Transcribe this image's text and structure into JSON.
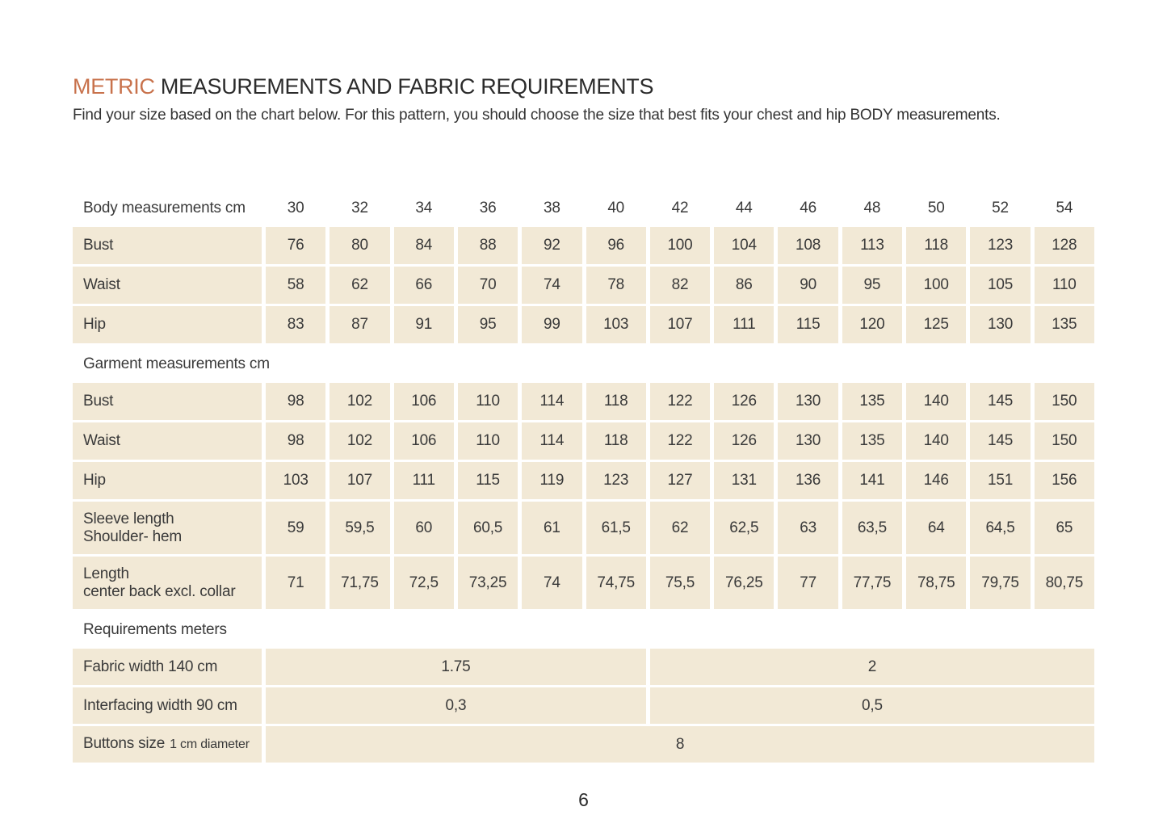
{
  "header": {
    "title_accent": "METRIC",
    "title_rest": "MEASUREMENTS AND FABRIC REQUIREMENTS",
    "intro": "Find your size based on the chart below. For this pattern, you should choose the size that best fits your chest and hip BODY measurements."
  },
  "colors": {
    "accent_orange": "#c8724c",
    "cell_beige": "#f2e9d6",
    "text_dark": "#3a3a3a"
  },
  "footer": {
    "page_number": "6"
  },
  "table": {
    "columns": 13,
    "sections": [
      {
        "type": "header_row",
        "label_lines": [
          "Body measurements cm"
        ],
        "values": [
          "30",
          "32",
          "34",
          "36",
          "38",
          "40",
          "42",
          "44",
          "46",
          "48",
          "50",
          "52",
          "54"
        ]
      },
      {
        "type": "data_row",
        "label_lines": [
          "Bust"
        ],
        "values": [
          "76",
          "80",
          "84",
          "88",
          "92",
          "96",
          "100",
          "104",
          "108",
          "113",
          "118",
          "123",
          "128"
        ]
      },
      {
        "type": "data_row",
        "label_lines": [
          "Waist"
        ],
        "values": [
          "58",
          "62",
          "66",
          "70",
          "74",
          "78",
          "82",
          "86",
          "90",
          "95",
          "100",
          "105",
          "110"
        ]
      },
      {
        "type": "data_row",
        "label_lines": [
          "Hip"
        ],
        "values": [
          "83",
          "87",
          "91",
          "95",
          "99",
          "103",
          "107",
          "111",
          "115",
          "120",
          "125",
          "130",
          "135"
        ]
      },
      {
        "type": "section_label",
        "label": "Garment measurements cm"
      },
      {
        "type": "data_row",
        "label_lines": [
          "Bust"
        ],
        "values": [
          "98",
          "102",
          "106",
          "110",
          "114",
          "118",
          "122",
          "126",
          "130",
          "135",
          "140",
          "145",
          "150"
        ]
      },
      {
        "type": "data_row",
        "label_lines": [
          "Waist"
        ],
        "values": [
          "98",
          "102",
          "106",
          "110",
          "114",
          "118",
          "122",
          "126",
          "130",
          "135",
          "140",
          "145",
          "150"
        ]
      },
      {
        "type": "data_row",
        "label_lines": [
          "Hip"
        ],
        "values": [
          "103",
          "107",
          "111",
          "115",
          "119",
          "123",
          "127",
          "131",
          "136",
          "141",
          "146",
          "151",
          "156"
        ]
      },
      {
        "type": "data_row",
        "tall": true,
        "label_lines": [
          "Sleeve length",
          "Shoulder- hem"
        ],
        "values": [
          "59",
          "59,5",
          "60",
          "60,5",
          "61",
          "61,5",
          "62",
          "62,5",
          "63",
          "63,5",
          "64",
          "64,5",
          "65"
        ]
      },
      {
        "type": "data_row",
        "tall": true,
        "label_lines": [
          "Length",
          "center back excl. collar"
        ],
        "values": [
          "71",
          "71,75",
          "72,5",
          "73,25",
          "74",
          "74,75",
          "75,5",
          "76,25",
          "77",
          "77,75",
          "78,75",
          "79,75",
          "80,75"
        ]
      },
      {
        "type": "section_label",
        "label": "Requirements meters"
      },
      {
        "type": "span_row",
        "label_lines": [
          "Fabric width 140 cm"
        ],
        "cells": [
          {
            "span": 6,
            "value": "1.75"
          },
          {
            "span": 7,
            "value": "2"
          }
        ]
      },
      {
        "type": "span_row",
        "label_lines": [
          "Interfacing width 90 cm"
        ],
        "cells": [
          {
            "span": 6,
            "value": "0,3"
          },
          {
            "span": 7,
            "value": "0,5"
          }
        ]
      },
      {
        "type": "span_row",
        "label_lines": [
          "Buttons size"
        ],
        "label_suffix_small": "1 cm diameter",
        "cells": [
          {
            "span": 13,
            "value": "8"
          }
        ]
      }
    ]
  }
}
